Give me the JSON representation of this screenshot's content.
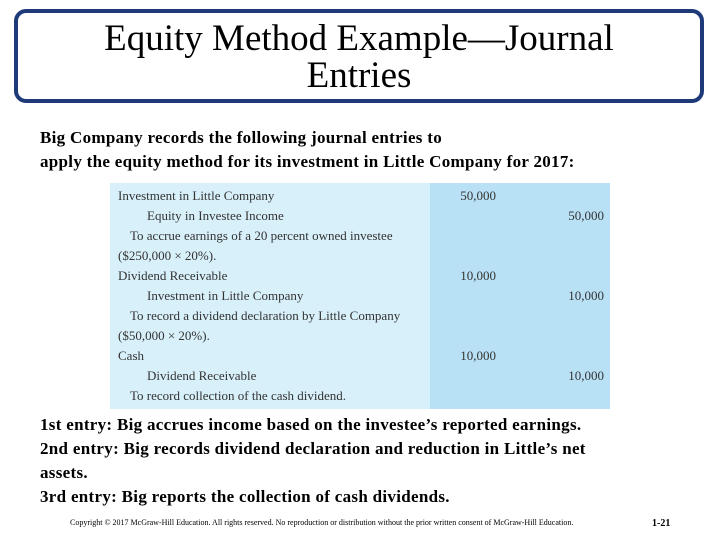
{
  "slide": {
    "title_line1": "Equity Method Example—Journal",
    "title_line2": "Entries",
    "intro_line1": "Big Company records the following journal entries to",
    "intro_line2": "apply the equity method for its investment in Little Company for 2017:"
  },
  "journal": [
    {
      "desc": "Investment in Little Company",
      "indent": 0,
      "debit": "50,000",
      "credit": ""
    },
    {
      "desc": "Equity in Investee Income",
      "indent": 1,
      "debit": "",
      "credit": "50,000"
    },
    {
      "desc": "To accrue earnings of a 20 percent owned investee",
      "indent": 2,
      "debit": "",
      "credit": ""
    },
    {
      "desc": "($250,000 × 20%).",
      "indent": 0,
      "debit": "",
      "credit": ""
    },
    {
      "desc": "Dividend Receivable",
      "indent": 0,
      "debit": "10,000",
      "credit": ""
    },
    {
      "desc": "Investment in Little Company",
      "indent": 1,
      "debit": "",
      "credit": "10,000"
    },
    {
      "desc": "To record a dividend declaration by Little Company",
      "indent": 2,
      "debit": "",
      "credit": ""
    },
    {
      "desc": "($50,000 × 20%).",
      "indent": 0,
      "debit": "",
      "credit": ""
    },
    {
      "desc": "Cash",
      "indent": 0,
      "debit": "10,000",
      "credit": ""
    },
    {
      "desc": "Dividend Receivable",
      "indent": 1,
      "debit": "",
      "credit": "10,000"
    },
    {
      "desc": "To record collection of the cash dividend.",
      "indent": 2,
      "debit": "",
      "credit": ""
    }
  ],
  "notes": [
    "1st entry: Big accrues income based on the investee’s reported earnings.",
    "2nd entry: Big records dividend declaration and reduction in Little’s net",
    "assets.",
    "3rd entry: Big reports the collection of cash dividends."
  ],
  "footer": {
    "copyright": "Copyright © 2017 McGraw-Hill Education. All rights reserved. No reproduction or distribution without the prior written consent of McGraw-Hill Education.",
    "page_number": "1-21"
  },
  "colors": {
    "title_border": "#1f3a78",
    "journal_bg": "#d8f0fa",
    "amount_band": "#b9e1f6"
  }
}
